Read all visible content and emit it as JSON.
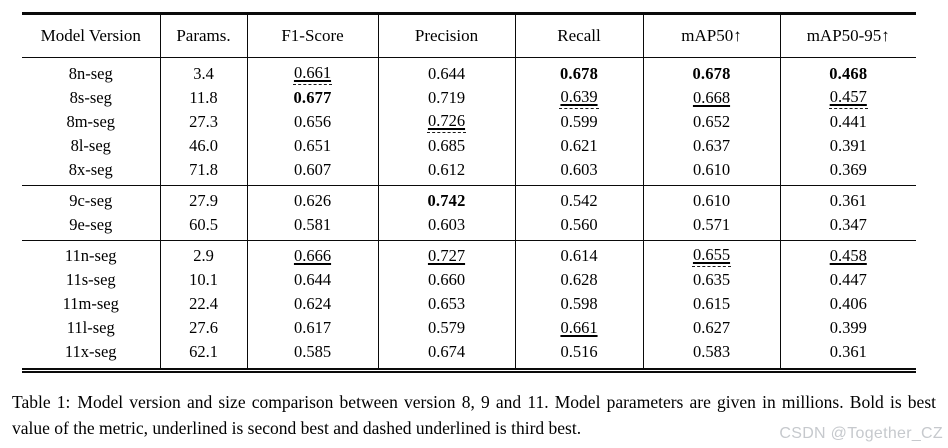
{
  "header": {
    "columns": [
      "Model Version",
      "Params.",
      "F1-Score",
      "Precision",
      "Recall",
      "mAP50↑",
      "mAP50-95↑"
    ]
  },
  "table": {
    "sections": [
      {
        "rows": [
          {
            "cells": [
              {
                "v": "8n-seg"
              },
              {
                "v": "3.4"
              },
              {
                "v": "0.661",
                "s": "third"
              },
              {
                "v": "0.644"
              },
              {
                "v": "0.678",
                "s": "bold"
              },
              {
                "v": "0.678",
                "s": "bold"
              },
              {
                "v": "0.468",
                "s": "bold"
              }
            ]
          },
          {
            "cells": [
              {
                "v": "8s-seg"
              },
              {
                "v": "11.8"
              },
              {
                "v": "0.677",
                "s": "bold"
              },
              {
                "v": "0.719"
              },
              {
                "v": "0.639",
                "s": "third"
              },
              {
                "v": "0.668",
                "s": "second"
              },
              {
                "v": "0.457",
                "s": "third"
              }
            ]
          },
          {
            "cells": [
              {
                "v": "8m-seg"
              },
              {
                "v": "27.3"
              },
              {
                "v": "0.656"
              },
              {
                "v": "0.726",
                "s": "third"
              },
              {
                "v": "0.599"
              },
              {
                "v": "0.652"
              },
              {
                "v": "0.441"
              }
            ]
          },
          {
            "cells": [
              {
                "v": "8l-seg"
              },
              {
                "v": "46.0"
              },
              {
                "v": "0.651"
              },
              {
                "v": "0.685"
              },
              {
                "v": "0.621"
              },
              {
                "v": "0.637"
              },
              {
                "v": "0.391"
              }
            ]
          },
          {
            "cells": [
              {
                "v": "8x-seg"
              },
              {
                "v": "71.8"
              },
              {
                "v": "0.607"
              },
              {
                "v": "0.612"
              },
              {
                "v": "0.603"
              },
              {
                "v": "0.610"
              },
              {
                "v": "0.369"
              }
            ]
          }
        ]
      },
      {
        "rows": [
          {
            "cells": [
              {
                "v": "9c-seg"
              },
              {
                "v": "27.9"
              },
              {
                "v": "0.626"
              },
              {
                "v": "0.742",
                "s": "bold"
              },
              {
                "v": "0.542"
              },
              {
                "v": "0.610"
              },
              {
                "v": "0.361"
              }
            ]
          },
          {
            "cells": [
              {
                "v": "9e-seg"
              },
              {
                "v": "60.5"
              },
              {
                "v": "0.581"
              },
              {
                "v": "0.603"
              },
              {
                "v": "0.560"
              },
              {
                "v": "0.571"
              },
              {
                "v": "0.347"
              }
            ]
          }
        ]
      },
      {
        "rows": [
          {
            "cells": [
              {
                "v": "11n-seg"
              },
              {
                "v": "2.9"
              },
              {
                "v": "0.666",
                "s": "second"
              },
              {
                "v": "0.727",
                "s": "second"
              },
              {
                "v": "0.614"
              },
              {
                "v": "0.655",
                "s": "third"
              },
              {
                "v": "0.458",
                "s": "second"
              }
            ]
          },
          {
            "cells": [
              {
                "v": "11s-seg"
              },
              {
                "v": "10.1"
              },
              {
                "v": "0.644"
              },
              {
                "v": "0.660"
              },
              {
                "v": "0.628"
              },
              {
                "v": "0.635"
              },
              {
                "v": "0.447"
              }
            ]
          },
          {
            "cells": [
              {
                "v": "11m-seg"
              },
              {
                "v": "22.4"
              },
              {
                "v": "0.624"
              },
              {
                "v": "0.653"
              },
              {
                "v": "0.598"
              },
              {
                "v": "0.615"
              },
              {
                "v": "0.406"
              }
            ]
          },
          {
            "cells": [
              {
                "v": "11l-seg"
              },
              {
                "v": "27.6"
              },
              {
                "v": "0.617"
              },
              {
                "v": "0.579"
              },
              {
                "v": "0.661",
                "s": "second"
              },
              {
                "v": "0.627"
              },
              {
                "v": "0.399"
              }
            ]
          },
          {
            "cells": [
              {
                "v": "11x-seg"
              },
              {
                "v": "62.1"
              },
              {
                "v": "0.585"
              },
              {
                "v": "0.674"
              },
              {
                "v": "0.516"
              },
              {
                "v": "0.583"
              },
              {
                "v": "0.361"
              }
            ]
          }
        ]
      }
    ]
  },
  "caption": {
    "label": "Table 1:",
    "text": "Model version and size comparison between version 8, 9 and 11. Model parameters are given in millions. Bold is best value of the metric, underlined is second best and dashed underlined is third best."
  },
  "watermark": {
    "text": "CSDN @Together_CZ",
    "color": "#c6c9cd"
  }
}
